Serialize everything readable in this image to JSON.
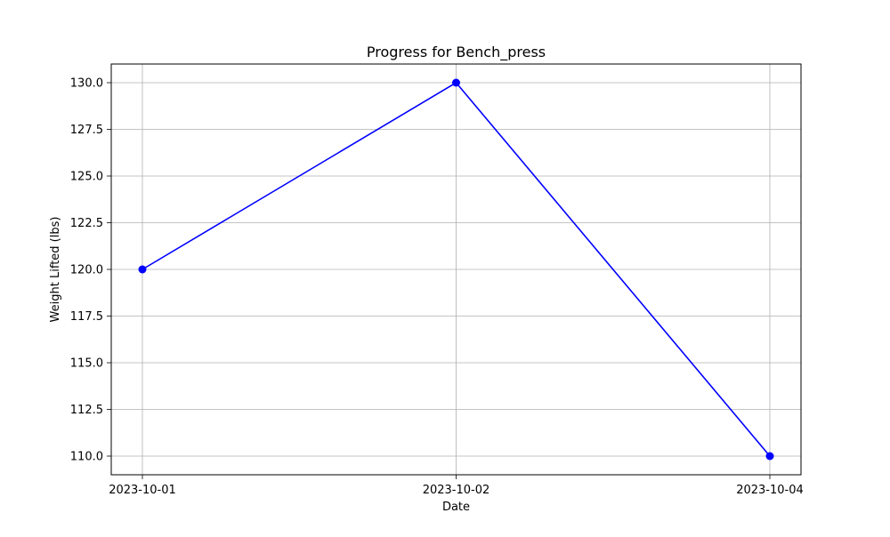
{
  "chart_data": {
    "type": "line",
    "title": "Progress for Bench_press",
    "xlabel": "Date",
    "ylabel": "Weight Lifted (lbs)",
    "categories": [
      "2023-10-01",
      "2023-10-02",
      "2023-10-04"
    ],
    "series": [
      {
        "values": [
          120.0,
          130.0,
          110.0
        ],
        "color": "#0000ff",
        "marker": "circle"
      }
    ],
    "ylim": [
      109.0,
      131.0
    ],
    "yticks": [
      "110.0",
      "112.5",
      "115.0",
      "117.5",
      "120.0",
      "122.5",
      "125.0",
      "127.5",
      "130.0"
    ],
    "grid": true,
    "grid_color": "#b0b0b0"
  }
}
